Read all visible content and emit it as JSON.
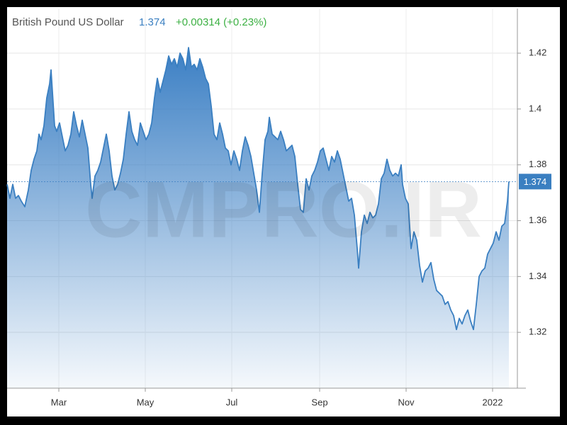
{
  "chart_data": {
    "type": "area",
    "title": "British Pound US Dollar",
    "last_value": 1.374,
    "change": "+0.00314 (+0.23%)",
    "watermark": "CMPRO.IR",
    "color": "#3a7fc1",
    "change_color": "#3cb043",
    "grid": true,
    "x": [
      -36.5,
      -34.5,
      -32.5,
      -30.5,
      -28.5,
      -26.5,
      -24,
      -21.5,
      -19.5,
      -17.5,
      -15.5,
      -14,
      -12.5,
      -10.5,
      -8.5,
      -6.5,
      -5.5,
      -4.5,
      -3,
      -1.5,
      0.5,
      2.5,
      4.5,
      6.5,
      8.5,
      10.5,
      12.5,
      14.5,
      16.5,
      18.5,
      20.5,
      22.5,
      23.5,
      25.5,
      27.5,
      29.5,
      31.5,
      33.5,
      35.5,
      37.5,
      39.5,
      41.5,
      43.5,
      45.5,
      47.5,
      49.5,
      51.5,
      53.5,
      55.5,
      57.5,
      59.5,
      61.5,
      63.5,
      65.5,
      67.5,
      69.5,
      71.5,
      73.5,
      75.5,
      77.5,
      79.5,
      81.5,
      83.5,
      85.5,
      87.5,
      89.5,
      91.5,
      93.5,
      95.5,
      97.5,
      99.5,
      101.5,
      103.5,
      105.5,
      107.5,
      109.5,
      111.5,
      113.5,
      115.5,
      117.5,
      119.5,
      121.5,
      123.5,
      125.5,
      127.5,
      129.5,
      131.5,
      133.5,
      135.5,
      137.5,
      139.5,
      141.5,
      143.5,
      145.5,
      147.5,
      148.5,
      150.5,
      152.5,
      154.5,
      156.5,
      158.5,
      160.5,
      162.5,
      164.5,
      166.5,
      168.5,
      170.5,
      172.5,
      174.5,
      176.5,
      178.5,
      180.5,
      182.5,
      184.5,
      186.5,
      188.5,
      190.5,
      192.5,
      194.5,
      196.5,
      198.5,
      200.5,
      202.5,
      204.5,
      206.5,
      208.5,
      210.5,
      211.5,
      213.5,
      215.5,
      217.5,
      219.5,
      221.5,
      223.5,
      225.5,
      227.5,
      229.5,
      231.5,
      233.5,
      235.5,
      237.5,
      239.5,
      241.5,
      242.5,
      244.5,
      246.5,
      248.5,
      250.5,
      252.5,
      254.5,
      256.5,
      258.5,
      260.5,
      262.5,
      264.5,
      266.5,
      268.5,
      270.5,
      272.5,
      274.5,
      276.5,
      278.5,
      280.5,
      282.5,
      284.5,
      286.5,
      288.5,
      290.5,
      292.5,
      294.5,
      296.5,
      298.5,
      300.5,
      302.5,
      304.5,
      306.5,
      308.5,
      310.5,
      312.5,
      314.5,
      316.5,
      317.5
    ],
    "values": [
      1.373,
      1.368,
      1.373,
      1.368,
      1.369,
      1.367,
      1.365,
      1.371,
      1.378,
      1.382,
      1.385,
      1.391,
      1.389,
      1.394,
      1.404,
      1.409,
      1.414,
      1.406,
      1.394,
      1.392,
      1.395,
      1.39,
      1.385,
      1.387,
      1.391,
      1.399,
      1.394,
      1.39,
      1.396,
      1.391,
      1.386,
      1.373,
      1.368,
      1.376,
      1.378,
      1.381,
      1.386,
      1.391,
      1.385,
      1.376,
      1.371,
      1.373,
      1.377,
      1.382,
      1.391,
      1.399,
      1.392,
      1.389,
      1.387,
      1.395,
      1.392,
      1.389,
      1.391,
      1.395,
      1.404,
      1.411,
      1.406,
      1.41,
      1.414,
      1.419,
      1.416,
      1.418,
      1.415,
      1.42,
      1.418,
      1.414,
      1.422,
      1.415,
      1.416,
      1.414,
      1.418,
      1.415,
      1.411,
      1.409,
      1.401,
      1.391,
      1.389,
      1.395,
      1.391,
      1.386,
      1.385,
      1.38,
      1.385,
      1.382,
      1.378,
      1.385,
      1.39,
      1.387,
      1.383,
      1.377,
      1.371,
      1.363,
      1.377,
      1.389,
      1.392,
      1.397,
      1.391,
      1.39,
      1.389,
      1.392,
      1.389,
      1.385,
      1.386,
      1.387,
      1.383,
      1.373,
      1.364,
      1.363,
      1.375,
      1.371,
      1.376,
      1.378,
      1.381,
      1.385,
      1.386,
      1.382,
      1.378,
      1.383,
      1.381,
      1.385,
      1.382,
      1.377,
      1.372,
      1.367,
      1.368,
      1.362,
      1.35,
      1.343,
      1.356,
      1.362,
      1.359,
      1.363,
      1.361,
      1.362,
      1.366,
      1.375,
      1.377,
      1.382,
      1.378,
      1.376,
      1.377,
      1.376,
      1.38,
      1.373,
      1.368,
      1.366,
      1.35,
      1.356,
      1.353,
      1.344,
      1.338,
      1.342,
      1.343,
      1.345,
      1.339,
      1.335,
      1.334,
      1.333,
      1.33,
      1.331,
      1.328,
      1.326,
      1.321,
      1.325,
      1.323,
      1.326,
      1.328,
      1.324,
      1.321,
      1.33,
      1.34,
      1.342,
      1.343,
      1.348,
      1.35,
      1.352,
      1.356,
      1.353,
      1.358,
      1.359,
      1.367,
      1.374
    ],
    "xlim": [
      -36.5,
      323.5
    ],
    "xticks": [
      {
        "value": 0,
        "label": "Mar"
      },
      {
        "value": 61,
        "label": "May"
      },
      {
        "value": 122,
        "label": "Jul"
      },
      {
        "value": 184,
        "label": "Sep"
      },
      {
        "value": 245,
        "label": "Nov"
      },
      {
        "value": 306,
        "label": "2022"
      }
    ],
    "ylim": [
      1.3,
      1.436
    ],
    "yticks": [
      1.32,
      1.34,
      1.36,
      1.38,
      1.4,
      1.42
    ]
  }
}
